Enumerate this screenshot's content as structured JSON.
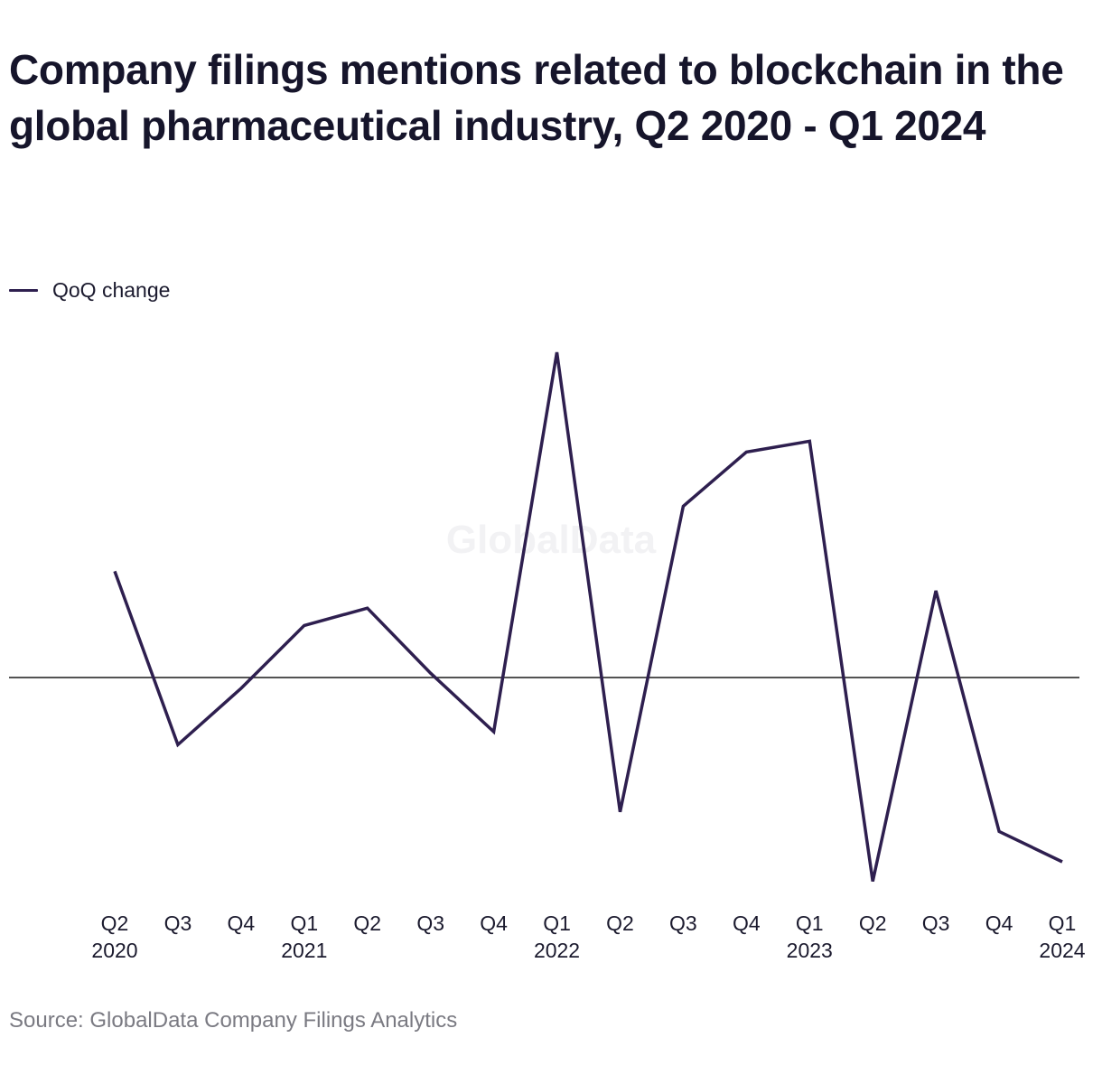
{
  "title": "Company filings mentions related to blockchain in the global pharmaceutical industry, Q2 2020 - Q1 2024",
  "legend": {
    "label": "QoQ change"
  },
  "watermark": "GlobalData",
  "source": "Source: GlobalData Company Filings Analytics",
  "colors": {
    "line": "#2e1f4f",
    "zero_line": "#1a1a1a",
    "text": "#1b1a2e",
    "source_text": "#7a7a82"
  },
  "chart_data": {
    "type": "line",
    "title": "Company filings mentions related to blockchain in the global pharmaceutical industry, Q2 2020 - Q1 2024",
    "xlabel": "",
    "ylabel": "",
    "y_axis_labels_shown": false,
    "zero_line": true,
    "grid": false,
    "legend_position": "top-left",
    "ylim": [
      -100,
      150
    ],
    "categories": [
      {
        "quarter": "Q2",
        "year": "2020"
      },
      {
        "quarter": "Q3",
        "year": ""
      },
      {
        "quarter": "Q4",
        "year": ""
      },
      {
        "quarter": "Q1",
        "year": "2021"
      },
      {
        "quarter": "Q2",
        "year": ""
      },
      {
        "quarter": "Q3",
        "year": ""
      },
      {
        "quarter": "Q4",
        "year": ""
      },
      {
        "quarter": "Q1",
        "year": "2022"
      },
      {
        "quarter": "Q2",
        "year": ""
      },
      {
        "quarter": "Q3",
        "year": ""
      },
      {
        "quarter": "Q4",
        "year": ""
      },
      {
        "quarter": "Q1",
        "year": "2023"
      },
      {
        "quarter": "Q2",
        "year": ""
      },
      {
        "quarter": "Q3",
        "year": ""
      },
      {
        "quarter": "Q4",
        "year": ""
      },
      {
        "quarter": "Q1",
        "year": "2024"
      }
    ],
    "series": [
      {
        "name": "QoQ change",
        "values": [
          49,
          -31,
          -5,
          24,
          32,
          2,
          -25,
          150,
          -62,
          79,
          104,
          109,
          -94,
          40,
          -71,
          -85
        ]
      }
    ]
  }
}
